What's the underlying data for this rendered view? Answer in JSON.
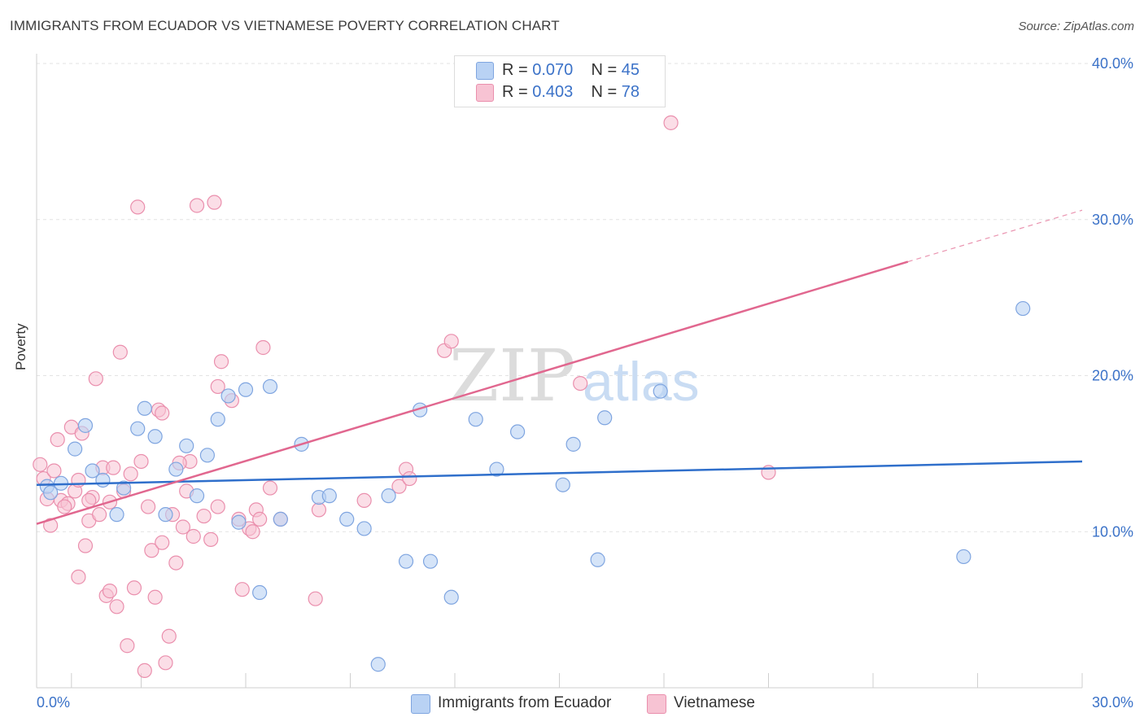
{
  "header": {
    "title": "IMMIGRANTS FROM ECUADOR VS VIETNAMESE POVERTY CORRELATION CHART",
    "source": "Source: ZipAtlas.com"
  },
  "watermark": {
    "part1": "ZIP",
    "part2": "atlas"
  },
  "legend_top": {
    "rows": [
      {
        "r_label": "R = ",
        "r_value": "0.070",
        "n_label": "N = ",
        "n_value": "45"
      },
      {
        "r_label": "R = ",
        "r_value": "0.403",
        "n_label": "N = ",
        "n_value": "78"
      }
    ]
  },
  "legend_bottom": {
    "items": [
      {
        "label": "Immigrants from Ecuador"
      },
      {
        "label": "Vietnamese"
      }
    ]
  },
  "chart_data": {
    "type": "scatter",
    "title": "IMMIGRANTS FROM ECUADOR VS VIETNAMESE POVERTY CORRELATION CHART",
    "xlabel": "",
    "ylabel": "Poverty",
    "xlim": [
      0,
      30
    ],
    "ylim": [
      0,
      40
    ],
    "x_tick_labels": [
      "0.0%",
      "30.0%"
    ],
    "y_tick_labels": [
      "10.0%",
      "20.0%",
      "30.0%",
      "40.0%"
    ],
    "grid": true,
    "legend_position": "bottom",
    "colors": {
      "ecuador_fill": "#b9d2f4",
      "ecuador_stroke": "#7fa5e0",
      "ecuador_line": "#2f6fcb",
      "vietnamese_fill": "#f7c3d3",
      "vietnamese_stroke": "#ea8fad",
      "vietnamese_line": "#e1678f",
      "axis_label": "#3b72c8"
    },
    "series": [
      {
        "name": "Immigrants from Ecuador",
        "r": 0.07,
        "n": 45,
        "trend": {
          "x": [
            0,
            30
          ],
          "y": [
            13.0,
            14.5
          ]
        },
        "points": [
          [
            0.3,
            12.9
          ],
          [
            0.4,
            12.5
          ],
          [
            0.7,
            13.1
          ],
          [
            1.1,
            15.3
          ],
          [
            1.4,
            16.8
          ],
          [
            1.6,
            13.9
          ],
          [
            1.9,
            13.3
          ],
          [
            2.3,
            11.1
          ],
          [
            2.5,
            12.8
          ],
          [
            2.9,
            16.6
          ],
          [
            3.1,
            17.9
          ],
          [
            3.4,
            16.1
          ],
          [
            3.7,
            11.1
          ],
          [
            4.0,
            14.0
          ],
          [
            4.3,
            15.5
          ],
          [
            4.6,
            12.3
          ],
          [
            4.9,
            14.9
          ],
          [
            5.2,
            17.2
          ],
          [
            5.5,
            18.7
          ],
          [
            5.8,
            10.6
          ],
          [
            6.0,
            19.1
          ],
          [
            6.4,
            6.1
          ],
          [
            6.7,
            19.3
          ],
          [
            7.0,
            10.8
          ],
          [
            7.6,
            15.6
          ],
          [
            8.1,
            12.2
          ],
          [
            8.4,
            12.3
          ],
          [
            8.9,
            10.8
          ],
          [
            9.4,
            10.2
          ],
          [
            9.8,
            1.5
          ],
          [
            10.1,
            12.3
          ],
          [
            10.6,
            8.1
          ],
          [
            11.0,
            17.8
          ],
          [
            11.3,
            8.1
          ],
          [
            11.9,
            5.8
          ],
          [
            12.6,
            17.2
          ],
          [
            13.2,
            14.0
          ],
          [
            13.8,
            16.4
          ],
          [
            15.1,
            13.0
          ],
          [
            15.4,
            15.6
          ],
          [
            16.1,
            8.2
          ],
          [
            16.3,
            17.3
          ],
          [
            17.9,
            19.0
          ],
          [
            26.6,
            8.4
          ],
          [
            28.3,
            24.3
          ]
        ]
      },
      {
        "name": "Vietnamese",
        "r": 0.403,
        "n": 78,
        "trend": {
          "x": [
            0,
            25
          ],
          "y": [
            10.5,
            27.3
          ]
        },
        "trend_dashed": {
          "x": [
            25,
            30
          ],
          "y": [
            27.3,
            30.6
          ]
        },
        "points": [
          [
            0.1,
            14.3
          ],
          [
            0.2,
            13.4
          ],
          [
            0.3,
            12.1
          ],
          [
            0.4,
            10.4
          ],
          [
            0.5,
            13.9
          ],
          [
            0.6,
            15.9
          ],
          [
            0.7,
            12.0
          ],
          [
            0.9,
            11.8
          ],
          [
            1.0,
            16.7
          ],
          [
            1.1,
            12.6
          ],
          [
            1.2,
            7.1
          ],
          [
            1.3,
            16.3
          ],
          [
            1.4,
            9.1
          ],
          [
            1.5,
            10.7
          ],
          [
            1.6,
            12.2
          ],
          [
            1.7,
            19.8
          ],
          [
            1.8,
            11.1
          ],
          [
            1.9,
            14.1
          ],
          [
            2.0,
            5.9
          ],
          [
            2.1,
            6.2
          ],
          [
            2.2,
            14.1
          ],
          [
            2.3,
            5.2
          ],
          [
            2.4,
            21.5
          ],
          [
            2.6,
            2.7
          ],
          [
            2.7,
            13.7
          ],
          [
            2.8,
            6.4
          ],
          [
            2.9,
            30.8
          ],
          [
            3.0,
            14.5
          ],
          [
            3.1,
            1.1
          ],
          [
            3.2,
            11.6
          ],
          [
            3.3,
            8.8
          ],
          [
            3.4,
            5.8
          ],
          [
            3.5,
            17.8
          ],
          [
            3.6,
            9.3
          ],
          [
            3.7,
            1.6
          ],
          [
            3.8,
            3.3
          ],
          [
            3.9,
            11.1
          ],
          [
            4.0,
            8.0
          ],
          [
            4.2,
            10.3
          ],
          [
            4.3,
            12.6
          ],
          [
            4.4,
            14.5
          ],
          [
            4.5,
            9.7
          ],
          [
            4.6,
            30.9
          ],
          [
            4.8,
            11.0
          ],
          [
            5.0,
            9.5
          ],
          [
            5.1,
            31.1
          ],
          [
            5.2,
            11.6
          ],
          [
            5.3,
            20.9
          ],
          [
            5.6,
            18.4
          ],
          [
            5.8,
            10.8
          ],
          [
            5.9,
            6.3
          ],
          [
            6.1,
            10.2
          ],
          [
            6.3,
            11.4
          ],
          [
            6.4,
            10.8
          ],
          [
            6.5,
            21.8
          ],
          [
            6.7,
            12.8
          ],
          [
            7.0,
            10.8
          ],
          [
            8.0,
            5.7
          ],
          [
            8.1,
            11.4
          ],
          [
            9.4,
            12.0
          ],
          [
            10.4,
            12.9
          ],
          [
            10.6,
            14.0
          ],
          [
            10.7,
            13.4
          ],
          [
            11.7,
            21.6
          ],
          [
            11.9,
            22.2
          ],
          [
            15.6,
            19.5
          ],
          [
            17.6,
            37.7
          ],
          [
            18.2,
            36.2
          ],
          [
            21.0,
            13.8
          ],
          [
            5.2,
            19.3
          ],
          [
            1.2,
            13.3
          ],
          [
            2.1,
            11.9
          ],
          [
            0.8,
            11.6
          ],
          [
            3.6,
            17.6
          ],
          [
            4.1,
            14.4
          ],
          [
            6.2,
            10.0
          ],
          [
            1.5,
            12.0
          ],
          [
            2.5,
            12.6
          ]
        ]
      }
    ]
  }
}
